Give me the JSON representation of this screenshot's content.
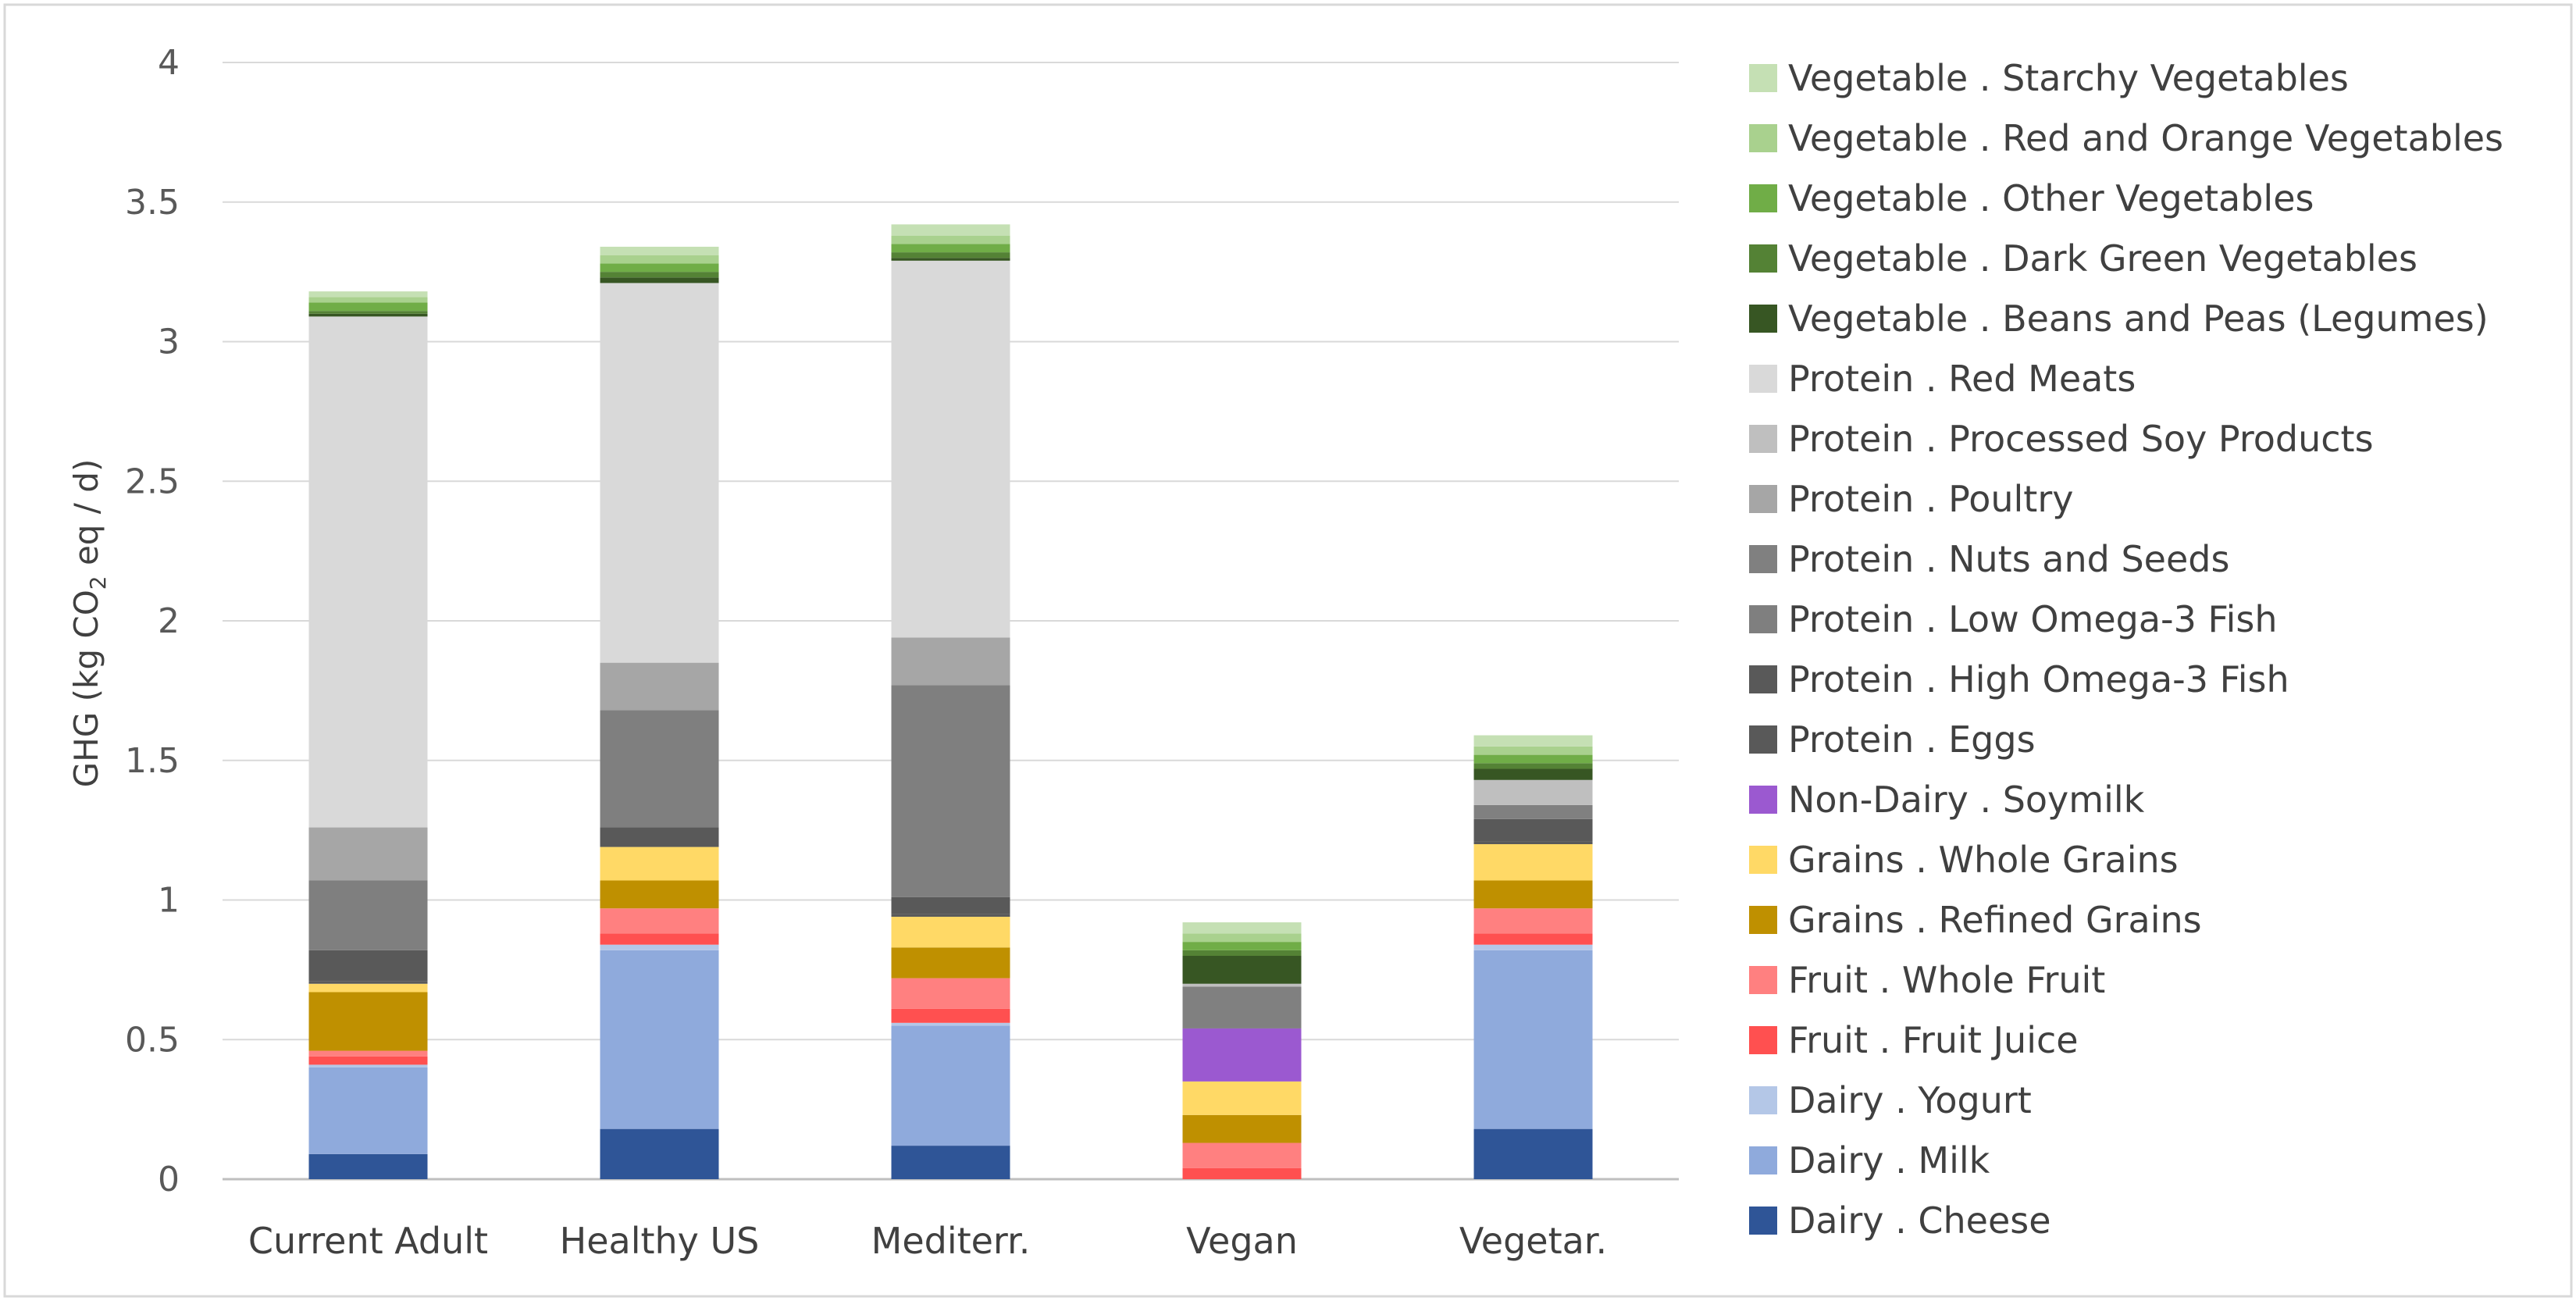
{
  "chart_data": {
    "type": "bar",
    "stacked": true,
    "title": "",
    "xlabel": "",
    "ylabel": {
      "prefix": "GHG (kg CO",
      "subscript": "2",
      "suffix": " eq / d)"
    },
    "ylim": [
      0,
      4
    ],
    "yticks": [
      "0",
      "0.5",
      "1",
      "1.5",
      "2",
      "2.5",
      "3",
      "3.5",
      "4"
    ],
    "categories": [
      "Current Adult",
      "Healthy US",
      "Mediterr.",
      "Vegan",
      "Vegetar."
    ],
    "legend_position": "right",
    "series": [
      {
        "name": "Dairy . Cheese",
        "color": "#2f5597",
        "values": [
          0.09,
          0.18,
          0.12,
          0.0,
          0.18
        ]
      },
      {
        "name": "Dairy . Milk",
        "color": "#8faadc",
        "values": [
          0.31,
          0.64,
          0.43,
          0.0,
          0.64
        ]
      },
      {
        "name": "Dairy . Yogurt",
        "color": "#b4c7e7",
        "values": [
          0.01,
          0.02,
          0.01,
          0.0,
          0.02
        ]
      },
      {
        "name": "Fruit . Fruit Juice",
        "color": "#ff5050",
        "values": [
          0.03,
          0.04,
          0.05,
          0.04,
          0.04
        ]
      },
      {
        "name": "Fruit . Whole Fruit",
        "color": "#ff8080",
        "values": [
          0.02,
          0.09,
          0.11,
          0.09,
          0.09
        ]
      },
      {
        "name": "Grains . Refined Grains",
        "color": "#bf9000",
        "values": [
          0.21,
          0.1,
          0.11,
          0.1,
          0.1
        ]
      },
      {
        "name": "Grains . Whole Grains",
        "color": "#ffd966",
        "values": [
          0.03,
          0.12,
          0.11,
          0.12,
          0.13
        ]
      },
      {
        "name": "Non-Dairy . Soymilk",
        "color": "#9b59d0",
        "values": [
          0.0,
          0.0,
          0.0,
          0.19,
          0.0
        ]
      },
      {
        "name": "Protein . Eggs",
        "color": "#595959",
        "values": [
          0.01,
          0.0,
          0.01,
          0.0,
          0.01
        ]
      },
      {
        "name": "Protein . High Omega-3 Fish",
        "color": "#595959",
        "values": [
          0.11,
          0.07,
          0.06,
          0.0,
          0.08
        ]
      },
      {
        "name": "Protein . Low Omega-3 Fish",
        "color": "#7f7f7f",
        "values": [
          0.25,
          0.42,
          0.76,
          0.0,
          0.0
        ]
      },
      {
        "name": "Protein . Nuts and Seeds",
        "color": "#808080",
        "values": [
          0.0,
          0.0,
          0.0,
          0.15,
          0.05
        ]
      },
      {
        "name": "Protein . Poultry",
        "color": "#a6a6a6",
        "values": [
          0.19,
          0.17,
          0.17,
          0.0,
          0.0
        ]
      },
      {
        "name": "Protein . Processed Soy Products",
        "color": "#bfbfbf",
        "values": [
          0.0,
          0.0,
          0.0,
          0.01,
          0.09
        ]
      },
      {
        "name": "Protein . Red Meats",
        "color": "#d9d9d9",
        "values": [
          1.83,
          1.36,
          1.35,
          0.0,
          0.0
        ]
      },
      {
        "name": "Vegetable . Beans and Peas (Legumes)",
        "color": "#375623",
        "values": [
          0.01,
          0.02,
          0.01,
          0.1,
          0.04
        ]
      },
      {
        "name": "Vegetable . Dark Green Vegetables",
        "color": "#548235",
        "values": [
          0.01,
          0.02,
          0.02,
          0.02,
          0.02
        ]
      },
      {
        "name": "Vegetable . Other Vegetables",
        "color": "#70ad47",
        "values": [
          0.03,
          0.03,
          0.03,
          0.03,
          0.03
        ]
      },
      {
        "name": "Vegetable . Red and Orange Vegetables",
        "color": "#a9d18e",
        "values": [
          0.02,
          0.03,
          0.03,
          0.03,
          0.03
        ]
      },
      {
        "name": "Vegetable . Starchy Vegetables",
        "color": "#c5e0b4",
        "values": [
          0.02,
          0.03,
          0.04,
          0.04,
          0.04
        ]
      }
    ],
    "gridlines": true
  }
}
